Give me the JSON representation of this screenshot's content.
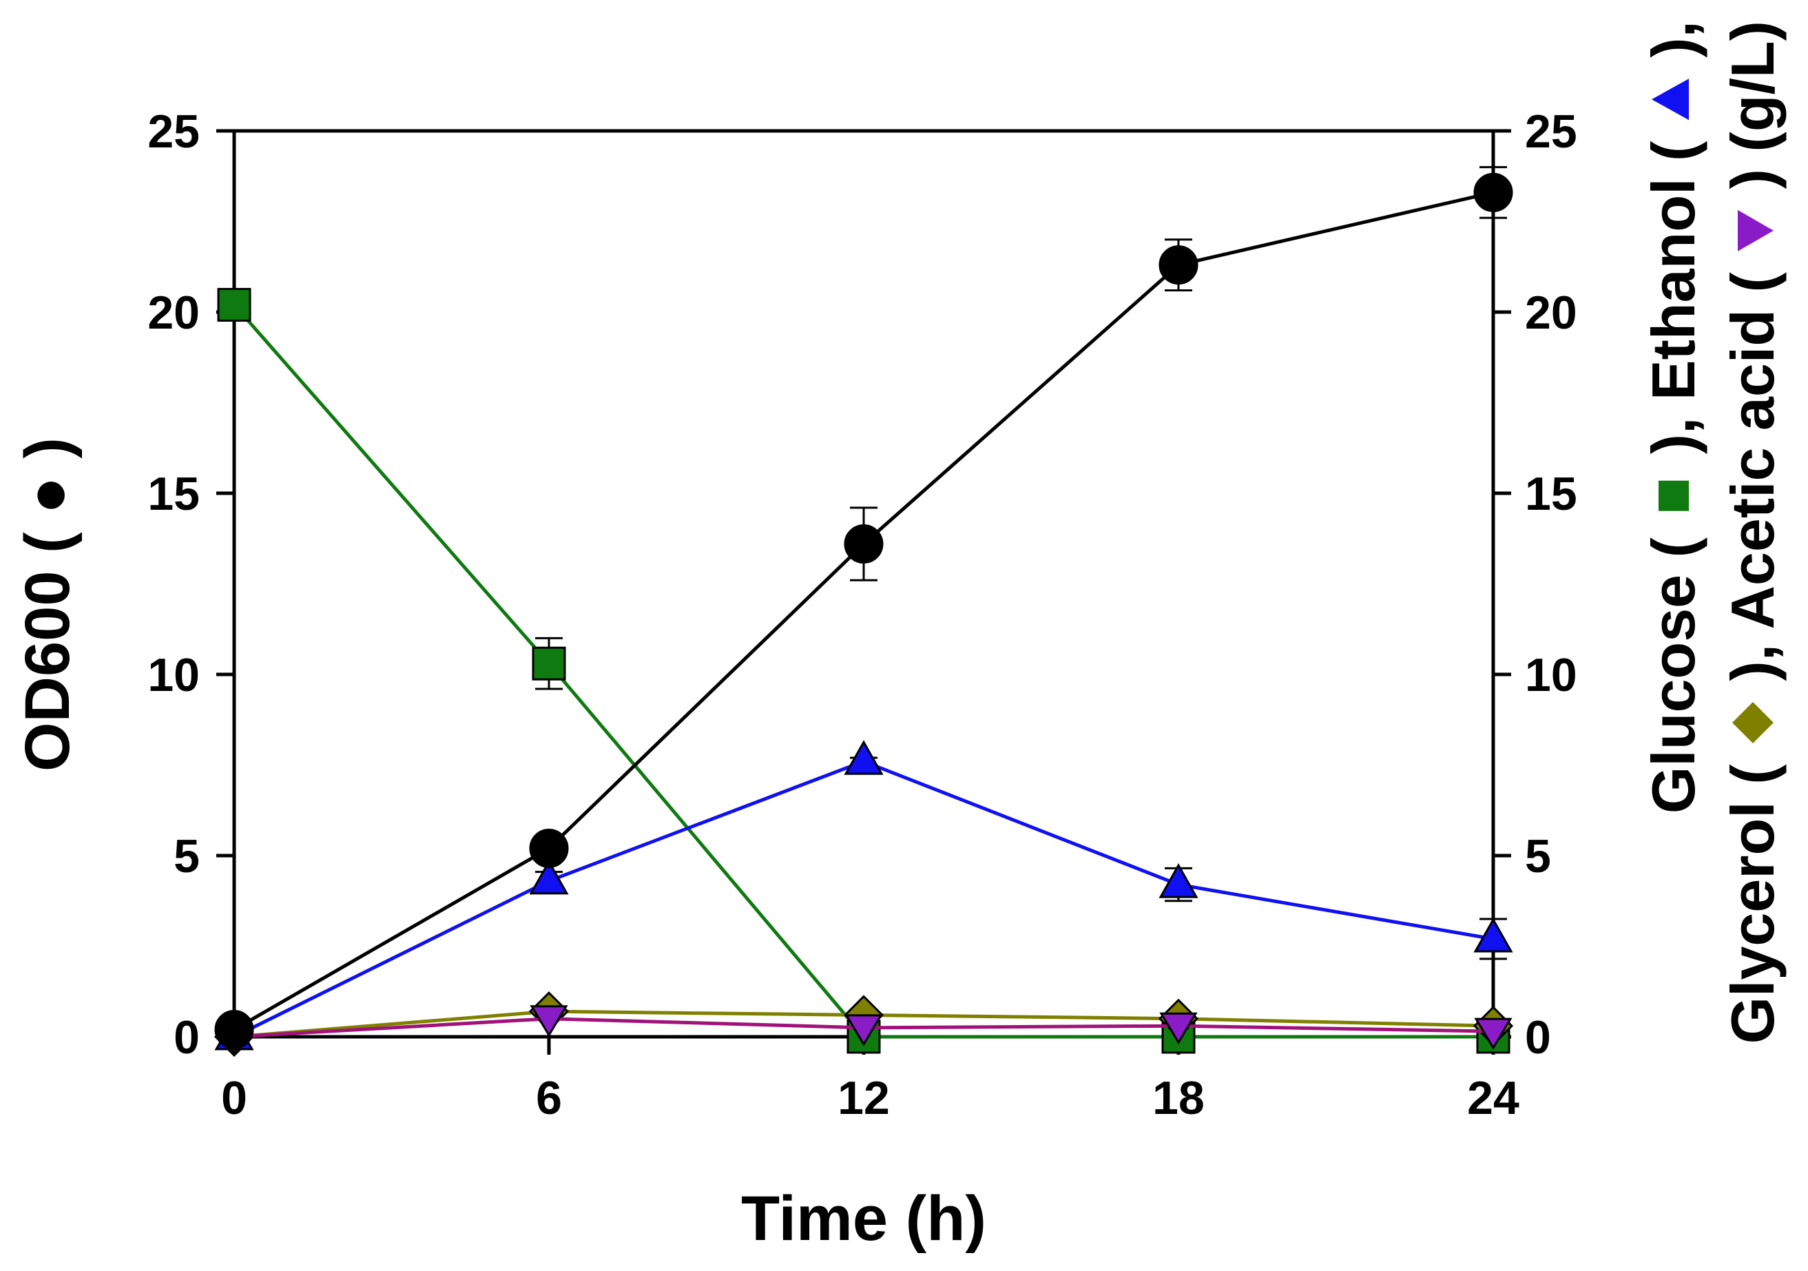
{
  "chart_data": {
    "type": "line",
    "xlabel": "Time (h)",
    "ylabel_left": {
      "text": "OD600 ( ",
      "marker_glyph": "●",
      "close": " )"
    },
    "ylabel_right": {
      "line1": [
        {
          "text": "Glucose ( ",
          "marker": ""
        },
        {
          "text": "",
          "marker": "square"
        },
        {
          "text": " ), Ethanol ( ",
          "marker": ""
        },
        {
          "text": "",
          "marker": "triangle-up"
        },
        {
          "text": " ),",
          "marker": ""
        }
      ],
      "line2": [
        {
          "text": "Glycerol ( ",
          "marker": ""
        },
        {
          "text": "",
          "marker": "diamond"
        },
        {
          "text": " ), Acetic acid ( ",
          "marker": ""
        },
        {
          "text": "",
          "marker": "triangle-down"
        },
        {
          "text": " ) (g/L)",
          "marker": ""
        }
      ]
    },
    "x": [
      0,
      6,
      12,
      18,
      24
    ],
    "xlim": [
      0,
      24
    ],
    "ylim_left": [
      0,
      25
    ],
    "ylim_right": [
      0,
      25
    ],
    "xticks": [
      "0",
      "6",
      "12",
      "18",
      "24"
    ],
    "yticks_left": [
      "0",
      "5",
      "10",
      "15",
      "20",
      "25"
    ],
    "yticks_right": [
      "0",
      "5",
      "10",
      "15",
      "20",
      "25"
    ],
    "series": [
      {
        "name": "Glucose",
        "axis": "right",
        "marker": "square",
        "color": "#0F7A0F",
        "values": [
          20.2,
          10.3,
          0.0,
          0.0,
          0.0
        ],
        "errors": [
          0.0,
          0.7,
          0.0,
          0.0,
          0.0
        ]
      },
      {
        "name": "Glycerol",
        "axis": "right",
        "marker": "diamond",
        "color": "#808000",
        "values": [
          0.0,
          0.7,
          0.6,
          0.5,
          0.3
        ],
        "errors": [
          0,
          0,
          0,
          0,
          0
        ]
      },
      {
        "name": "Acetic acid",
        "axis": "right",
        "marker": "triangle-down",
        "color": "#A0127A",
        "marker_color": "#8A1CC8",
        "values": [
          0.0,
          0.5,
          0.25,
          0.3,
          0.15
        ],
        "errors": [
          0,
          0,
          0,
          0,
          0
        ]
      },
      {
        "name": "Ethanol",
        "axis": "right",
        "marker": "triangle-up",
        "color": "#1010F0",
        "values": [
          0.0,
          4.3,
          7.6,
          4.2,
          2.7
        ],
        "errors": [
          0.0,
          0.25,
          0.1,
          0.45,
          0.55
        ]
      },
      {
        "name": "OD600",
        "axis": "left",
        "marker": "circle",
        "color": "#000000",
        "values": [
          0.2,
          5.2,
          13.6,
          21.3,
          23.3
        ],
        "errors": [
          0.0,
          0.2,
          1.0,
          0.7,
          0.7
        ]
      }
    ]
  }
}
